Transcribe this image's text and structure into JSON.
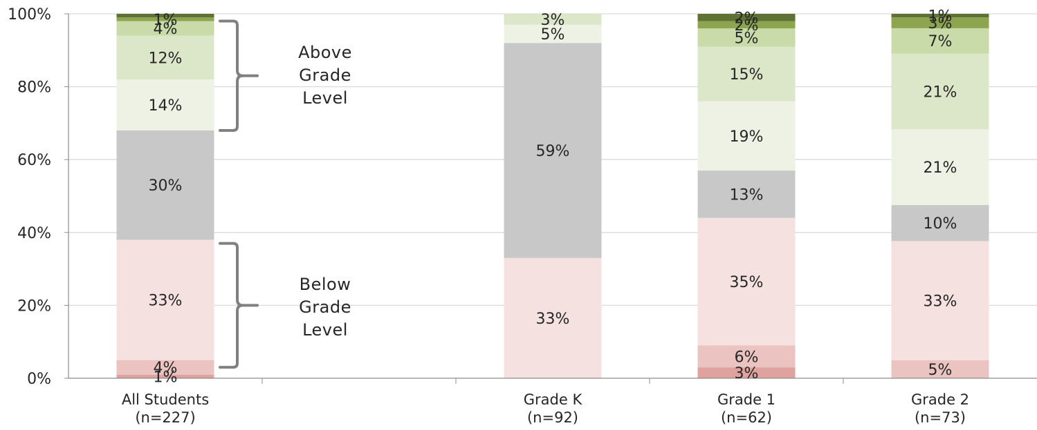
{
  "chart_data": {
    "type": "bar",
    "stacked": true,
    "categories": [
      {
        "line1": "All Students",
        "line2": "(n=227)"
      },
      {
        "line1": "",
        "line2": ""
      },
      {
        "line1": "Grade K",
        "line2": "(n=92)"
      },
      {
        "line1": "Grade 1",
        "line2": "(n=62)"
      },
      {
        "line1": "Grade 2",
        "line2": "(n=73)"
      }
    ],
    "series": [
      {
        "color": "#dfa29e",
        "values": [
          1,
          null,
          null,
          3,
          null
        ],
        "labels": [
          "1%",
          "",
          "",
          "3%",
          ""
        ]
      },
      {
        "color": "#ebc4c2",
        "values": [
          4,
          null,
          null,
          6,
          5
        ],
        "labels": [
          "4%",
          "",
          "",
          "6%",
          "5%"
        ]
      },
      {
        "color": "#f4e1e0",
        "values": [
          33,
          null,
          33,
          35,
          33
        ],
        "labels": [
          "33%",
          "",
          "33%",
          "35%",
          "33%"
        ]
      },
      {
        "color": "#c8c8c8",
        "values": [
          30,
          null,
          59,
          13,
          10
        ],
        "labels": [
          "30%",
          "",
          "59%",
          "13%",
          "10%"
        ]
      },
      {
        "color": "#eef2e4",
        "values": [
          14,
          null,
          5,
          19,
          21
        ],
        "labels": [
          "14%",
          "",
          "5%",
          "19%",
          "21%"
        ]
      },
      {
        "color": "#dce7c9",
        "values": [
          12,
          null,
          3,
          15,
          21
        ],
        "labels": [
          "12%",
          "",
          "3%",
          "15%",
          "21%"
        ]
      },
      {
        "color": "#c9dba9",
        "values": [
          4,
          null,
          null,
          5,
          7
        ],
        "labels": [
          "4%",
          "",
          "",
          "5%",
          "7%"
        ]
      },
      {
        "color": "#8ea54f",
        "values": [
          1,
          null,
          null,
          2,
          3
        ],
        "labels": [
          "1%",
          "",
          "",
          "2%",
          "3%"
        ]
      },
      {
        "color": "#5e7236",
        "values": [
          1,
          null,
          null,
          2,
          1
        ],
        "labels": [
          "",
          "",
          "",
          "2%",
          "1%"
        ]
      }
    ],
    "y_ticks": [
      "0%",
      "20%",
      "40%",
      "60%",
      "80%",
      "100%"
    ],
    "ylim": [
      0,
      100
    ],
    "grid": true,
    "annotations": [
      {
        "text_lines": [
          "Above",
          "Grade",
          "Level"
        ],
        "range": [
          68,
          98
        ]
      },
      {
        "text_lines": [
          "Below",
          "Grade",
          "Level"
        ],
        "range": [
          3,
          37
        ]
      }
    ],
    "colors": {
      "axis": "#8c8c8c",
      "gridline": "#d9d9d9",
      "text": "#262626",
      "bracket": "#808080"
    }
  }
}
